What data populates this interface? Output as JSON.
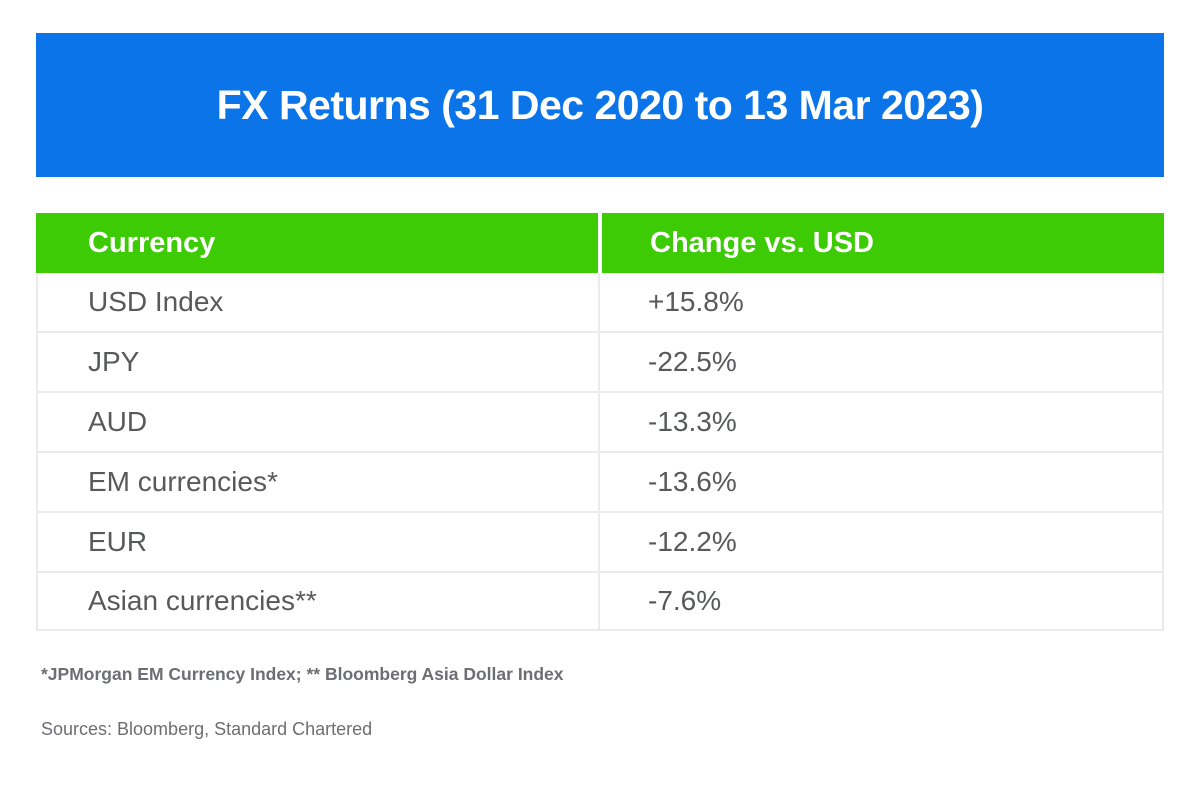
{
  "banner": {
    "title": "FX Returns (31 Dec 2020 to 13 Mar 2023)",
    "background_color": "#0b74e8",
    "text_color": "#ffffff"
  },
  "table": {
    "header": {
      "currency_label": "Currency",
      "change_label": "Change vs. USD",
      "background_color": "#3dcb05",
      "text_color": "#ffffff"
    },
    "rows": [
      {
        "currency": "USD Index",
        "change": "+15.8%"
      },
      {
        "currency": "JPY",
        "change": "-22.5%"
      },
      {
        "currency": "AUD",
        "change": "-13.3%"
      },
      {
        "currency": "EM currencies*",
        "change": "-13.6%"
      },
      {
        "currency": "EUR",
        "change": "-12.2%"
      },
      {
        "currency": "Asian currencies**",
        "change": "-7.6%"
      }
    ],
    "body_text_color": "#58595b",
    "divider_color": "#ebebeb"
  },
  "footnotes": {
    "indices": "*JPMorgan EM Currency Index; ** Bloomberg Asia Dollar Index",
    "sources": "Sources: Bloomberg, Standard Chartered",
    "text_color": "#6d6e71"
  },
  "chart_data": {
    "type": "table",
    "title": "FX Returns (31 Dec 2020 to 13 Mar 2023)",
    "columns": [
      "Currency",
      "Change vs. USD"
    ],
    "rows": [
      [
        "USD Index",
        "+15.8%"
      ],
      [
        "JPY",
        "-22.5%"
      ],
      [
        "AUD",
        "-13.3%"
      ],
      [
        "EM currencies*",
        "-13.6%"
      ],
      [
        "EUR",
        "-12.2%"
      ],
      [
        "Asian currencies**",
        "-7.6%"
      ]
    ],
    "values_pct": {
      "USD Index": 15.8,
      "JPY": -22.5,
      "AUD": -13.3,
      "EM currencies": -13.6,
      "EUR": -12.2,
      "Asian currencies": -7.6
    },
    "footnotes": [
      "*JPMorgan EM Currency Index",
      "** Bloomberg Asia Dollar Index"
    ],
    "sources": [
      "Bloomberg",
      "Standard Chartered"
    ]
  }
}
